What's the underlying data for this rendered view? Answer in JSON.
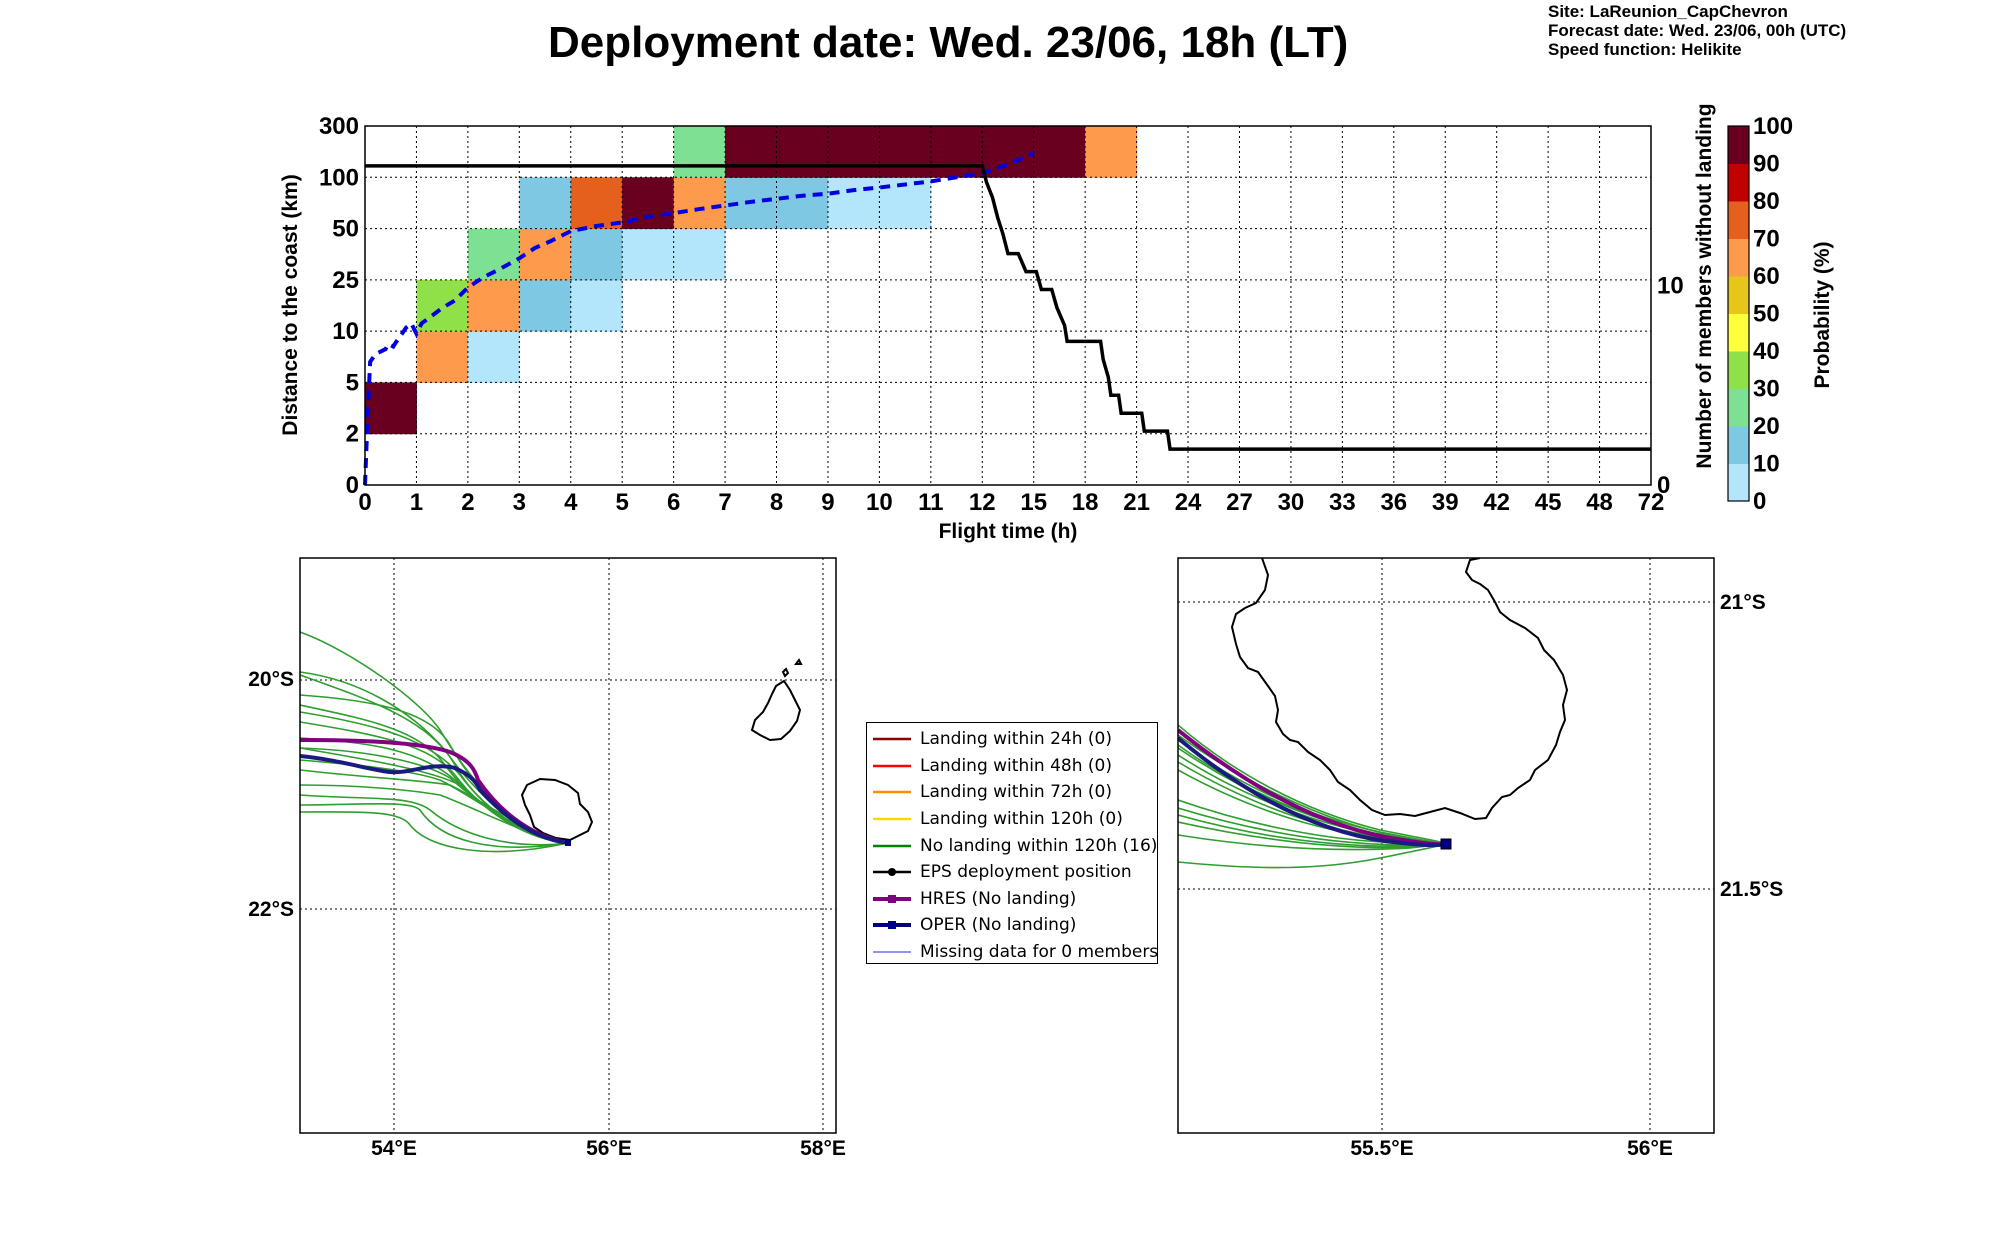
{
  "header": {
    "title": "Deployment date: Wed. 23/06, 18h (LT)",
    "info_lines": [
      "Site: LaReunion_CapChevron",
      "Forecast date: Wed. 23/06, 00h (UTC)",
      "Speed function: Helikite"
    ]
  },
  "chart_data": [
    {
      "type": "heatmap",
      "xlabel": "Flight time (h)",
      "ylabel": "Distance to the coast (km)",
      "y2label": "Number of members without landing",
      "x_ticks": [
        "0",
        "1",
        "2",
        "3",
        "4",
        "5",
        "6",
        "7",
        "8",
        "9",
        "10",
        "11",
        "12",
        "15",
        "18",
        "21",
        "24",
        "27",
        "30",
        "33",
        "36",
        "39",
        "42",
        "45",
        "48",
        "72"
      ],
      "y_ticks": [
        "0",
        "2",
        "5",
        "10",
        "25",
        "50",
        "100",
        "300"
      ],
      "y2_ticks": [
        "0",
        "10"
      ],
      "y2_range": [
        0,
        18
      ],
      "grid": true,
      "cells": [
        {
          "x": 0,
          "y": 1,
          "p": 100
        },
        {
          "x": 1,
          "y": 2,
          "p": 60
        },
        {
          "x": 1,
          "y": 3,
          "p": 30
        },
        {
          "x": 2,
          "y": 2,
          "p": 0
        },
        {
          "x": 2,
          "y": 3,
          "p": 60
        },
        {
          "x": 2,
          "y": 4,
          "p": 20
        },
        {
          "x": 3,
          "y": 3,
          "p": 10
        },
        {
          "x": 3,
          "y": 4,
          "p": 60
        },
        {
          "x": 3,
          "y": 5,
          "p": 10
        },
        {
          "x": 4,
          "y": 3,
          "p": 0
        },
        {
          "x": 4,
          "y": 4,
          "p": 10
        },
        {
          "x": 4,
          "y": 5,
          "p": 70
        },
        {
          "x": 5,
          "y": 4,
          "p": 0
        },
        {
          "x": 5,
          "y": 5,
          "p": 100
        },
        {
          "x": 6,
          "y": 4,
          "p": 0
        },
        {
          "x": 6,
          "y": 5,
          "p": 60
        },
        {
          "x": 6,
          "y": 6,
          "p": 20
        },
        {
          "x": 7,
          "y": 5,
          "p": 10
        },
        {
          "x": 7,
          "y": 6,
          "p": 90
        },
        {
          "x": 8,
          "y": 5,
          "p": 10
        },
        {
          "x": 8,
          "y": 6,
          "p": 90
        },
        {
          "x": 9,
          "y": 5,
          "p": 0
        },
        {
          "x": 9,
          "y": 6,
          "p": 100
        },
        {
          "x": 10,
          "y": 5,
          "p": 0
        },
        {
          "x": 10,
          "y": 6,
          "p": 100
        },
        {
          "x": 11,
          "y": 6,
          "p": 100
        },
        {
          "x": 12,
          "y": 6,
          "p": 100
        },
        {
          "x": 13,
          "y": 6,
          "p": 100
        },
        {
          "x": 14,
          "y": 6,
          "p": 60
        }
      ],
      "median_distance_line": {
        "color": "#0000e0",
        "points": [
          [
            0,
            0
          ],
          [
            0.05,
            1.3
          ],
          [
            0.1,
            2.4
          ],
          [
            0.2,
            2.55
          ],
          [
            0.4,
            2.65
          ],
          [
            0.45,
            2.75
          ],
          [
            0.55,
            2.7
          ],
          [
            0.6,
            2.78
          ],
          [
            0.7,
            2.92
          ],
          [
            0.8,
            3.07
          ],
          [
            0.9,
            3.15
          ],
          [
            1.0,
            2.95
          ],
          [
            1.1,
            3.15
          ],
          [
            1.3,
            3.3
          ],
          [
            1.5,
            3.45
          ],
          [
            1.75,
            3.6
          ],
          [
            2.0,
            3.85
          ],
          [
            2.3,
            4.05
          ],
          [
            2.6,
            4.2
          ],
          [
            3.0,
            4.42
          ],
          [
            3.3,
            4.62
          ],
          [
            3.6,
            4.75
          ],
          [
            4.0,
            4.95
          ],
          [
            4.5,
            5.05
          ],
          [
            5.0,
            5.12
          ],
          [
            5.5,
            5.23
          ],
          [
            6.0,
            5.3
          ],
          [
            6.5,
            5.38
          ],
          [
            7.0,
            5.45
          ],
          [
            7.5,
            5.52
          ],
          [
            8.0,
            5.58
          ],
          [
            8.5,
            5.64
          ],
          [
            9.0,
            5.68
          ],
          [
            9.5,
            5.75
          ],
          [
            10.0,
            5.8
          ],
          [
            10.5,
            5.86
          ],
          [
            11.0,
            5.92
          ],
          [
            11.5,
            6.0
          ],
          [
            12.0,
            6.08
          ],
          [
            12.5,
            6.25
          ],
          [
            13.0,
            6.47
          ]
        ]
      },
      "members_without_landing_line": {
        "color": "#000000",
        "points": [
          [
            0,
            16
          ],
          [
            12.0,
            16
          ],
          [
            12.08,
            15.2
          ],
          [
            12.2,
            14.4
          ],
          [
            12.3,
            13.4
          ],
          [
            12.4,
            12.6
          ],
          [
            12.5,
            11.6
          ],
          [
            12.7,
            11.6
          ],
          [
            12.85,
            10.7
          ],
          [
            13.05,
            10.7
          ],
          [
            13.15,
            9.8
          ],
          [
            13.35,
            9.8
          ],
          [
            13.45,
            8.9
          ],
          [
            13.6,
            8.0
          ],
          [
            13.65,
            7.2
          ],
          [
            14.3,
            7.2
          ],
          [
            14.35,
            6.3
          ],
          [
            14.45,
            5.4
          ],
          [
            14.5,
            4.5
          ],
          [
            14.65,
            4.5
          ],
          [
            14.7,
            3.6
          ],
          [
            15.1,
            3.6
          ],
          [
            15.15,
            2.7
          ],
          [
            15.6,
            2.7
          ],
          [
            15.65,
            1.8
          ],
          [
            25,
            1.8
          ]
        ]
      }
    },
    {
      "type": "map",
      "lon_ticks": [
        "54°E",
        "56°E",
        "58°E"
      ],
      "lat_ticks": [
        "20°S",
        "22°S"
      ]
    },
    {
      "type": "map",
      "lon_ticks": [
        "55.5°E",
        "56°E"
      ],
      "lat_ticks": [
        "21°S",
        "21.5°S"
      ]
    }
  ],
  "colorbar": {
    "title": "Probability (%)",
    "levels": [
      0,
      10,
      20,
      30,
      40,
      50,
      60,
      70,
      80,
      90,
      100
    ],
    "tick_labels": [
      "0",
      "10",
      "20",
      "30",
      "40",
      "50",
      "60",
      "70",
      "80",
      "90",
      "100"
    ],
    "colors": [
      "#b3e5fb",
      "#7ec8e3",
      "#7ee092",
      "#90e04a",
      "#ffff3a",
      "#e6c619",
      "#fe9a4c",
      "#e4601c",
      "#c10000",
      "#6a0020"
    ]
  },
  "legend": {
    "items": [
      {
        "label": "Landing within 24h (0)",
        "color": "#8b0000",
        "kind": "line"
      },
      {
        "label": "Landing within 48h (0)",
        "color": "#ff0000",
        "kind": "line"
      },
      {
        "label": "Landing within 72h (0)",
        "color": "#ff8c00",
        "kind": "line"
      },
      {
        "label": "Landing within 120h (0)",
        "color": "#ffd700",
        "kind": "line"
      },
      {
        "label": "No landing within 120h (16)",
        "color": "#008000",
        "kind": "line"
      },
      {
        "label": "EPS deployment position",
        "color": "#000000",
        "kind": "dot"
      },
      {
        "label": "HRES (No landing)",
        "color": "#800080",
        "kind": "square"
      },
      {
        "label": "OPER (No landing)",
        "color": "#000080",
        "kind": "square"
      },
      {
        "label": "Missing data for 0 members",
        "color": "#4d4dff",
        "kind": "thin"
      }
    ]
  }
}
